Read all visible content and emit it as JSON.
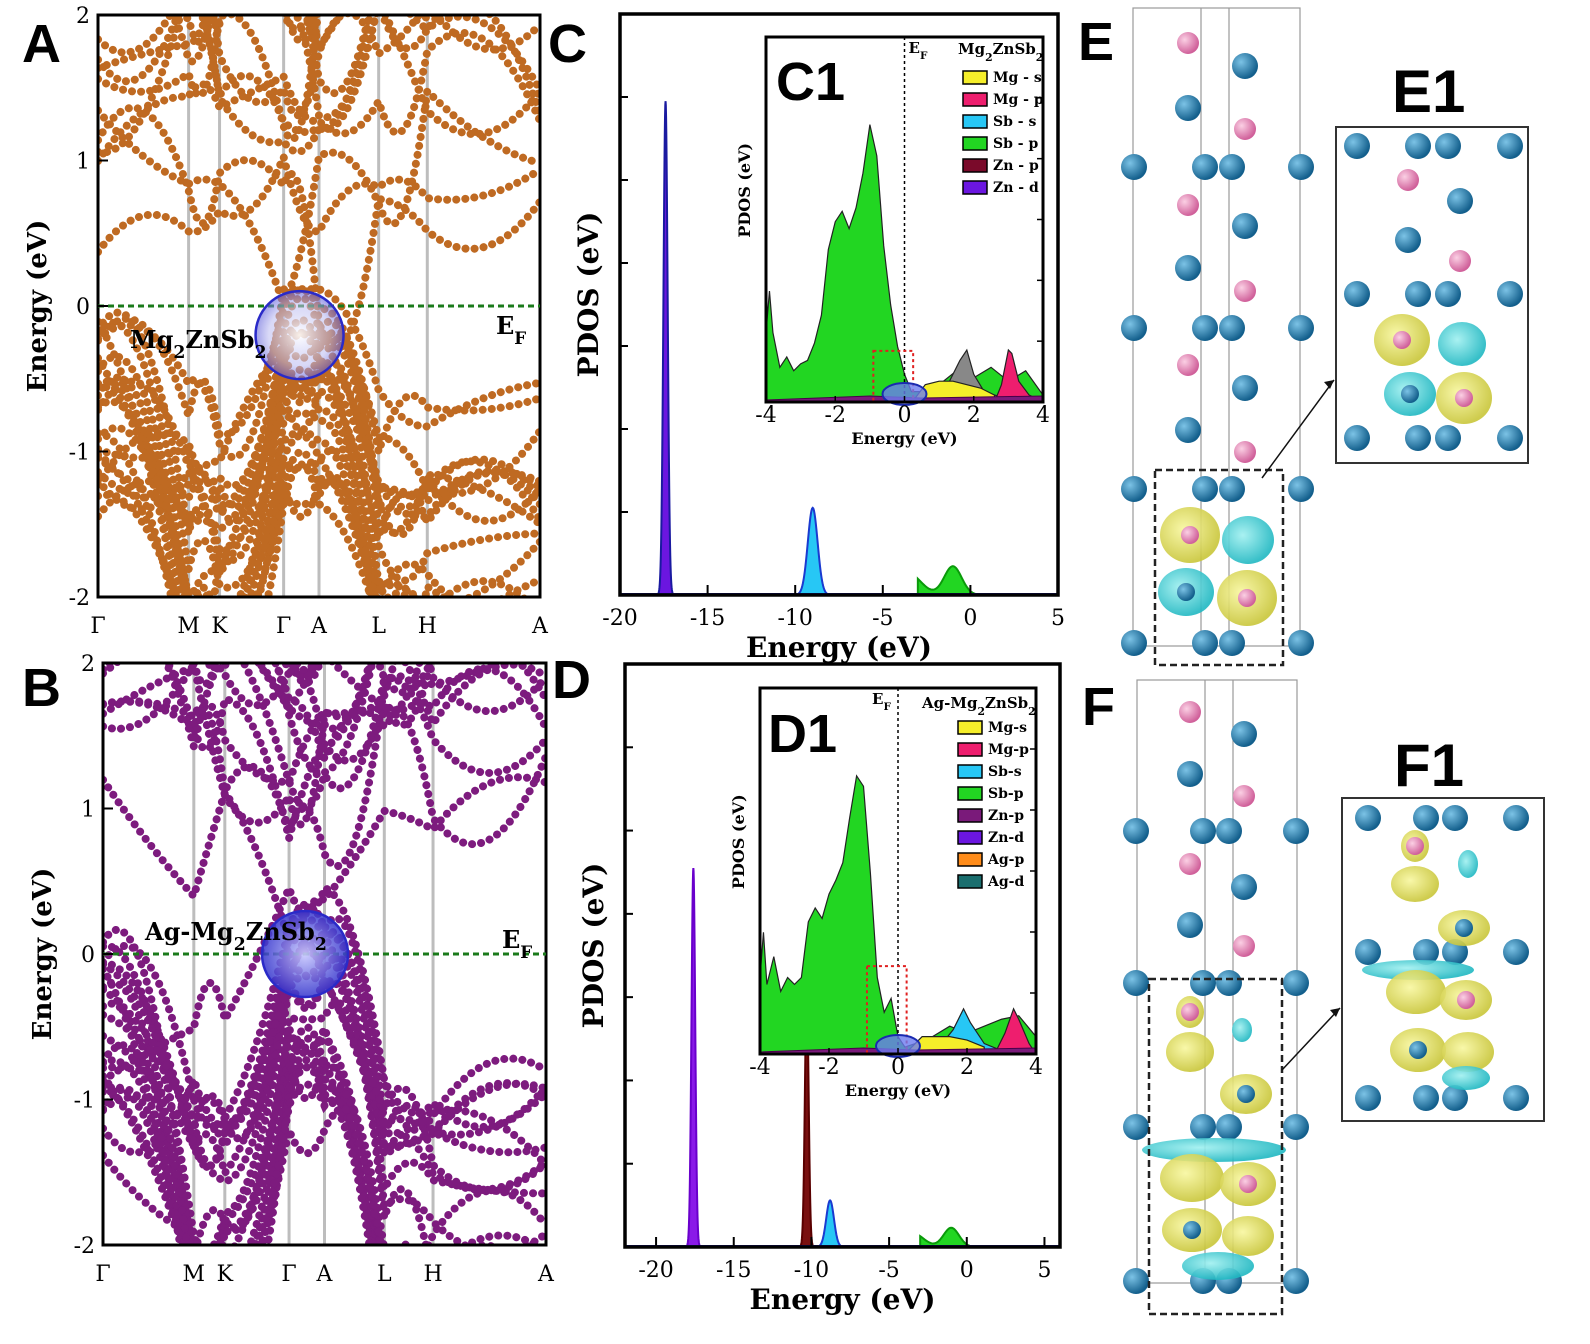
{
  "panels": {
    "A": "A",
    "B": "B",
    "C": "C",
    "D": "D",
    "E": "E",
    "F": "F",
    "C1": "C1",
    "D1": "D1",
    "E1": "E1",
    "F1": "F1"
  },
  "colors": {
    "band_A": "#bf6a22",
    "band_B": "#7d1b7e",
    "fermi": "#1a7a1a",
    "sym_line": "#bbbbbb",
    "mg": "#e07aa8",
    "sb": "#1f7aa8",
    "iso_yellow": "#e9e84a",
    "iso_cyan": "#3fd6d6"
  },
  "chart_data": [
    {
      "id": "A",
      "type": "line",
      "compound": "Mg2ZnSb2",
      "ylabel": "Energy (eV)",
      "ylim": [
        -2,
        2
      ],
      "yticks": [
        "-2",
        "-1",
        "0",
        "1",
        "2"
      ],
      "kpoints": [
        "Γ",
        "M",
        "K",
        "Γ",
        "A",
        "L",
        "H",
        "A"
      ],
      "fermi_label": "EF",
      "fermi_level": 0
    },
    {
      "id": "B",
      "type": "line",
      "compound": "Ag-Mg2ZnSb2",
      "ylabel": "Energy (eV)",
      "ylim": [
        -2,
        2
      ],
      "yticks": [
        "-2",
        "-1",
        "0",
        "1",
        "2"
      ],
      "kpoints": [
        "Γ",
        "M",
        "K",
        "Γ",
        "A",
        "L",
        "H",
        "A"
      ],
      "fermi_label": "EF",
      "fermi_level": 0
    },
    {
      "id": "C",
      "type": "area",
      "xlabel": "Energy (eV)",
      "ylabel": "PDOS (eV)",
      "xlim": [
        -20,
        5
      ],
      "xticks": [
        "-20",
        "-15",
        "-10",
        "-5",
        "0",
        "5"
      ],
      "peaks": [
        {
          "series": "Zn - d",
          "center": -17.4,
          "height": 0.85
        },
        {
          "series": "Sb - s",
          "center": -9.0,
          "height": 0.15
        },
        {
          "series": "Sb - p",
          "center": -1.0,
          "height": 0.09
        }
      ]
    },
    {
      "id": "C1",
      "type": "area",
      "title": "Mg2ZnSb2",
      "xlabel": "Energy (eV)",
      "ylabel": "PDOS (eV)",
      "xlim": [
        -4,
        4
      ],
      "xticks": [
        "-4",
        "-2",
        "0",
        "2",
        "4"
      ],
      "fermi_label": "EF",
      "legend": [
        "Mg - s",
        "Mg - p",
        "Sb -  s",
        "Sb - p",
        "Zn - p",
        "Zn - d"
      ],
      "legend_colors": [
        "#f5ee2a",
        "#ee1e6e",
        "#27c7f5",
        "#22d622",
        "#7a0a2a",
        "#6b16e0"
      ],
      "series": [
        {
          "name": "Sb - p",
          "x": [
            -4,
            -3.9,
            -3.8,
            -3.6,
            -3.4,
            -3.2,
            -3.0,
            -2.8,
            -2.6,
            -2.4,
            -2.2,
            -2.0,
            -1.8,
            -1.6,
            -1.4,
            -1.2,
            -1.0,
            -0.8,
            -0.6,
            -0.4,
            -0.2,
            0,
            0.2,
            0.5,
            1,
            1.5,
            2,
            2.5,
            3,
            3.5,
            4
          ],
          "y": [
            0.2,
            0.32,
            0.2,
            0.1,
            0.13,
            0.09,
            0.11,
            0.12,
            0.17,
            0.25,
            0.44,
            0.52,
            0.55,
            0.5,
            0.56,
            0.66,
            0.8,
            0.71,
            0.45,
            0.28,
            0.16,
            0.08,
            0.03,
            0.03,
            0.05,
            0.09,
            0.07,
            0.1,
            0.06,
            0.09,
            0.02
          ]
        },
        {
          "name": "Sb -  s",
          "x": [
            0,
            1,
            1.3,
            1.6,
            1.8,
            2.0,
            2.3,
            2.6,
            3,
            4
          ],
          "y": [
            0,
            0.02,
            0.06,
            0.12,
            0.15,
            0.08,
            0.03,
            0.02,
            0.01,
            0
          ]
        },
        {
          "name": "Mg - p",
          "x": [
            2.6,
            2.8,
            3.0,
            3.1,
            3.3,
            3.6,
            4
          ],
          "y": [
            0,
            0.05,
            0.15,
            0.14,
            0.06,
            0.02,
            0
          ]
        },
        {
          "name": "Mg - s",
          "x": [
            0.3,
            0.6,
            1.0,
            1.4,
            1.8,
            2.2,
            2.6
          ],
          "y": [
            0.01,
            0.05,
            0.06,
            0.06,
            0.05,
            0.04,
            0.02
          ]
        }
      ]
    },
    {
      "id": "D",
      "type": "area",
      "xlabel": "Energy (eV)",
      "ylabel": "PDOS (eV)",
      "xlim": [
        -22,
        6
      ],
      "xticks": [
        "-20",
        "-15",
        "-10",
        "-5",
        "0",
        "5"
      ],
      "peaks": [
        {
          "series": "Zn-d",
          "center": -17.6,
          "height": 0.65
        },
        {
          "series": "Ag-d",
          "center": -10.3,
          "height": 0.44
        },
        {
          "series": "Sb-s",
          "center": -8.8,
          "height": 0.08
        },
        {
          "series": "Sb-p",
          "center": -1.0,
          "height": 0.06
        }
      ]
    },
    {
      "id": "D1",
      "type": "area",
      "title": "Ag-Mg2ZnSb2",
      "xlabel": "Energy (eV)",
      "ylabel": "PDOS (eV)",
      "xlim": [
        -4,
        4
      ],
      "xticks": [
        "-4",
        "-2",
        "0",
        "2",
        "4"
      ],
      "fermi_label": "EF",
      "legend": [
        "Mg-s",
        "Mg-p",
        "Sb-s",
        "Sb-p",
        "Zn-p",
        "Zn-d",
        "Ag-p",
        "Ag-d"
      ],
      "legend_colors": [
        "#f5ee2a",
        "#ee1e6e",
        "#27c7f5",
        "#22d622",
        "#7a1a7a",
        "#6b16e0",
        "#ff8c1a",
        "#1a6e6e"
      ],
      "series": [
        {
          "name": "Sb-p",
          "x": [
            -4,
            -3.9,
            -3.8,
            -3.6,
            -3.4,
            -3.2,
            -3.0,
            -2.8,
            -2.6,
            -2.4,
            -2.2,
            -2.0,
            -1.8,
            -1.6,
            -1.4,
            -1.2,
            -1.0,
            -0.8,
            -0.6,
            -0.4,
            -0.2,
            0,
            0.2,
            0.5,
            1,
            1.5,
            2,
            2.5,
            3,
            3.5,
            4
          ],
          "y": [
            0.22,
            0.35,
            0.2,
            0.28,
            0.18,
            0.22,
            0.2,
            0.22,
            0.38,
            0.42,
            0.39,
            0.46,
            0.5,
            0.55,
            0.68,
            0.8,
            0.77,
            0.52,
            0.22,
            0.12,
            0.16,
            0.05,
            0.02,
            0.03,
            0.05,
            0.08,
            0.06,
            0.08,
            0.1,
            0.11,
            0.05
          ]
        },
        {
          "name": "Sb-s",
          "x": [
            0.5,
            1.2,
            1.6,
            1.9,
            2.1,
            2.5,
            3,
            4
          ],
          "y": [
            0,
            0.02,
            0.07,
            0.13,
            0.09,
            0.03,
            0.01,
            0
          ]
        },
        {
          "name": "Mg-p",
          "x": [
            2.8,
            3.1,
            3.35,
            3.5,
            3.8,
            4
          ],
          "y": [
            0,
            0.06,
            0.13,
            0.1,
            0.03,
            0
          ]
        },
        {
          "name": "Mg-s",
          "x": [
            0.3,
            0.7,
            1.1,
            1.5,
            2.0,
            2.5
          ],
          "y": [
            0.01,
            0.05,
            0.05,
            0.05,
            0.04,
            0.02
          ]
        }
      ]
    }
  ]
}
